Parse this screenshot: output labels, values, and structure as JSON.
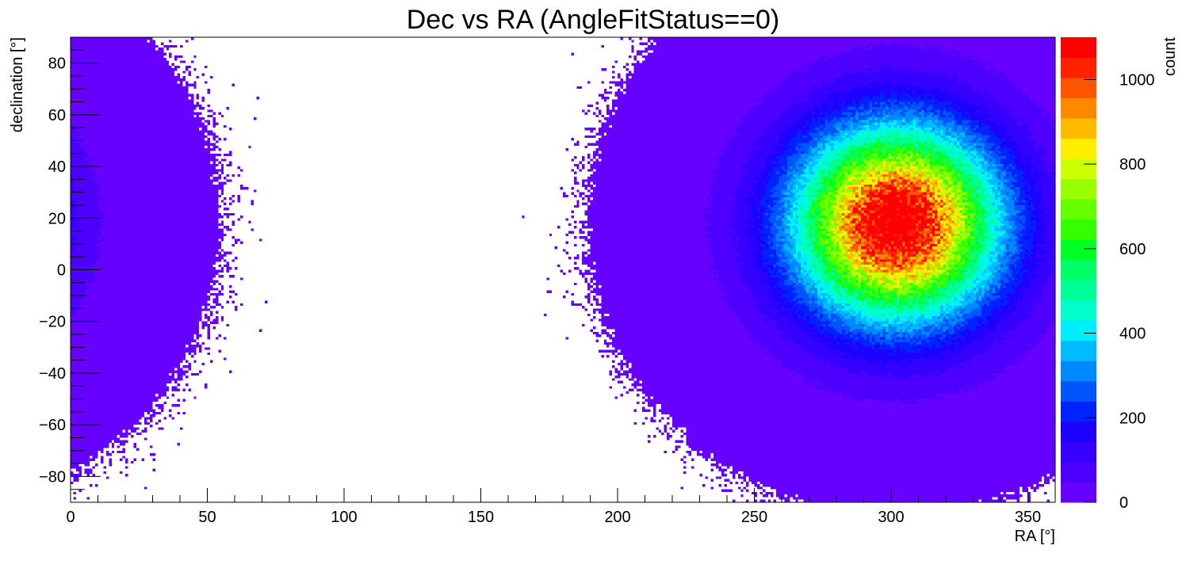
{
  "chart_data": {
    "type": "heatmap",
    "title": "Dec vs RA (AngleFitStatus==0)",
    "xlabel": "RA [°]",
    "ylabel": "declination [°]",
    "zlabel": "count",
    "xlim": [
      0,
      360
    ],
    "ylim": [
      -90,
      90
    ],
    "zlim": [
      0,
      1100
    ],
    "x_ticks": [
      0,
      50,
      100,
      150,
      200,
      250,
      300,
      350
    ],
    "x_tick_labels": [
      "0",
      "50",
      "100",
      "150",
      "200",
      "250",
      "300",
      "350"
    ],
    "y_ticks": [
      -80,
      -60,
      -40,
      -20,
      0,
      20,
      40,
      60,
      80
    ],
    "y_tick_labels": [
      "−80",
      "−60",
      "−40",
      "−20",
      "0",
      "20",
      "40",
      "60",
      "80"
    ],
    "z_ticks": [
      0,
      200,
      400,
      600,
      800,
      1000
    ],
    "z_tick_labels": [
      "0",
      "200",
      "400",
      "600",
      "800",
      "1000"
    ],
    "bins": {
      "nx": 360,
      "ny": 180
    },
    "peak": {
      "ra": 302,
      "dec": 18,
      "count": 1100
    },
    "grid": false,
    "palette": [
      "#6600ff",
      "#4e00ff",
      "#3600ff",
      "#1e00ff",
      "#0022ff",
      "#0055ff",
      "#0088ff",
      "#00bbff",
      "#00eeff",
      "#00ffcc",
      "#00ff99",
      "#00ff66",
      "#00ff22",
      "#33ff00",
      "#66ff00",
      "#99ff00",
      "#ccff00",
      "#ffee00",
      "#ffbb00",
      "#ff8800",
      "#ff5500",
      "#ff2200",
      "#ff0000"
    ]
  }
}
